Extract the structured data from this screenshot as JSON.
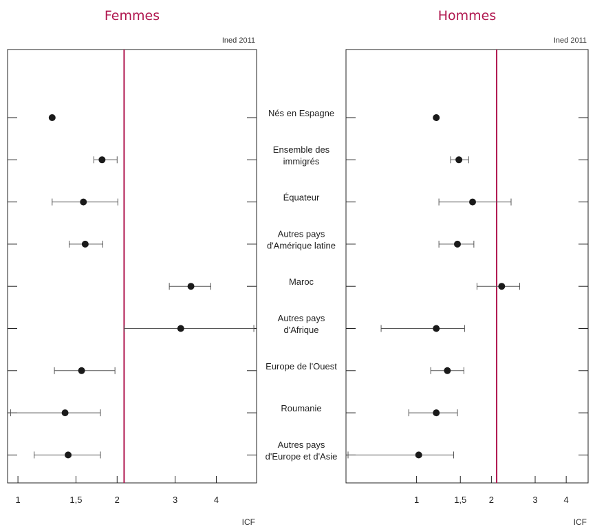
{
  "source_note": "Ined 2011",
  "chart_data": {
    "type": "scatter",
    "xlabel": "ICF",
    "x_scale": "log",
    "categories": [
      "Nés en Espagne",
      "Ensemble des immigrés",
      "Équateur",
      "Autres pays d'Amérique latine",
      "Maroc",
      "Autres pays d'Afrique",
      "Europe de l'Ouest",
      "Roumanie",
      "Autres pays d'Europe et d'Asie"
    ],
    "category_lines": [
      [
        "Nés en Espagne"
      ],
      [
        "Ensemble des",
        "immigrés"
      ],
      [
        "Équateur"
      ],
      [
        "Autres pays",
        "d'Amérique latine"
      ],
      [
        "Maroc"
      ],
      [
        "Autres pays",
        "d'Afrique"
      ],
      [
        "Europe de l'Ouest"
      ],
      [
        "Roumanie"
      ],
      [
        "Autres pays",
        "d'Europe et d'Asie"
      ]
    ],
    "panels": [
      {
        "title": "Femmes",
        "xlim": [
          0.93,
          5.3
        ],
        "xticks": [
          1,
          1.5,
          2,
          3,
          4
        ],
        "xtick_labels": [
          "1",
          "1,5",
          "2",
          "3",
          "4"
        ],
        "reference_line": 2.1,
        "points": [
          {
            "value": 1.27,
            "low": null,
            "high": null
          },
          {
            "value": 1.8,
            "low": 1.7,
            "high": 2.0
          },
          {
            "value": 1.58,
            "low": 1.27,
            "high": 2.01
          },
          {
            "value": 1.6,
            "low": 1.43,
            "high": 1.81
          },
          {
            "value": 3.35,
            "low": 2.88,
            "high": 3.85
          },
          {
            "value": 3.12,
            "low": 2.1,
            "high": 5.2
          },
          {
            "value": 1.56,
            "low": 1.29,
            "high": 1.97
          },
          {
            "value": 1.39,
            "low": 0.95,
            "high": 1.78
          },
          {
            "value": 1.42,
            "low": 1.12,
            "high": 1.78
          }
        ]
      },
      {
        "title": "Hommes",
        "xlim": [
          0.52,
          4.9
        ],
        "xticks": [
          1,
          1.5,
          2,
          3,
          4
        ],
        "xtick_labels": [
          "1",
          "1,5",
          "2",
          "3",
          "4"
        ],
        "reference_line": 2.1,
        "points": [
          {
            "value": 1.2,
            "low": null,
            "high": null
          },
          {
            "value": 1.48,
            "low": 1.37,
            "high": 1.62
          },
          {
            "value": 1.68,
            "low": 1.23,
            "high": 2.4
          },
          {
            "value": 1.46,
            "low": 1.23,
            "high": 1.7
          },
          {
            "value": 2.2,
            "low": 1.75,
            "high": 2.6
          },
          {
            "value": 1.2,
            "low": 0.72,
            "high": 1.56
          },
          {
            "value": 1.33,
            "low": 1.14,
            "high": 1.55
          },
          {
            "value": 1.2,
            "low": 0.93,
            "high": 1.46
          },
          {
            "value": 1.02,
            "low": 0.53,
            "high": 1.41
          }
        ]
      }
    ]
  }
}
